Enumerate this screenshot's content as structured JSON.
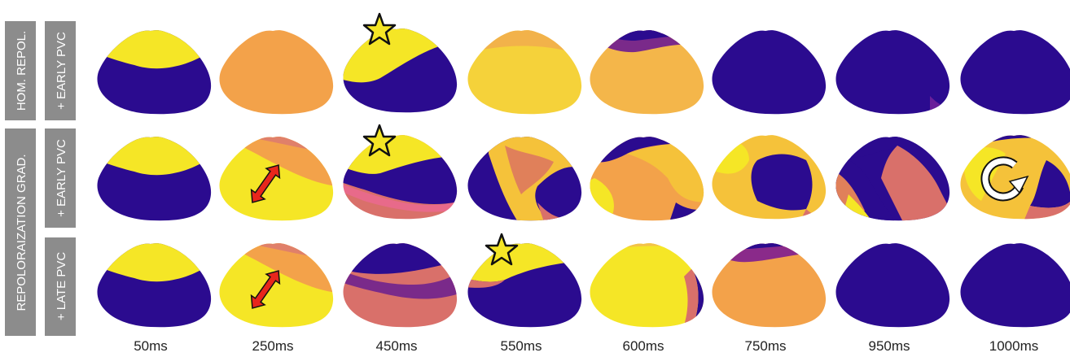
{
  "figure": {
    "group_labels": {
      "hom_repol": "HOM. REPOL.",
      "repol_grad": "REPOLORAIZATION  GRAD."
    },
    "row_labels": [
      "+ EARLY PVC",
      "+ EARLY PVC",
      "+ LATE PVC"
    ],
    "time_labels": [
      "50ms",
      "250ms",
      "450ms",
      "550ms",
      "600ms",
      "750ms",
      "950ms",
      "1000ms"
    ],
    "colors": {
      "label_box": "#8c8c8c",
      "purple": "#2b0b8f",
      "yellow": "#f5e626",
      "orange": "#f3a24a",
      "pink": "#d9706a",
      "arrow_red": "#e8261c",
      "star_yellow": "#f5e626"
    },
    "markers": {
      "stars": [
        "row1-450ms",
        "row2-450ms",
        "row3-550ms"
      ],
      "double_arrows": [
        "row2-250ms",
        "row3-250ms"
      ],
      "reentry_arrow": "row2-1000ms"
    },
    "icons": [
      "star-icon",
      "double-arrow-icon",
      "circular-arrow-icon"
    ]
  }
}
